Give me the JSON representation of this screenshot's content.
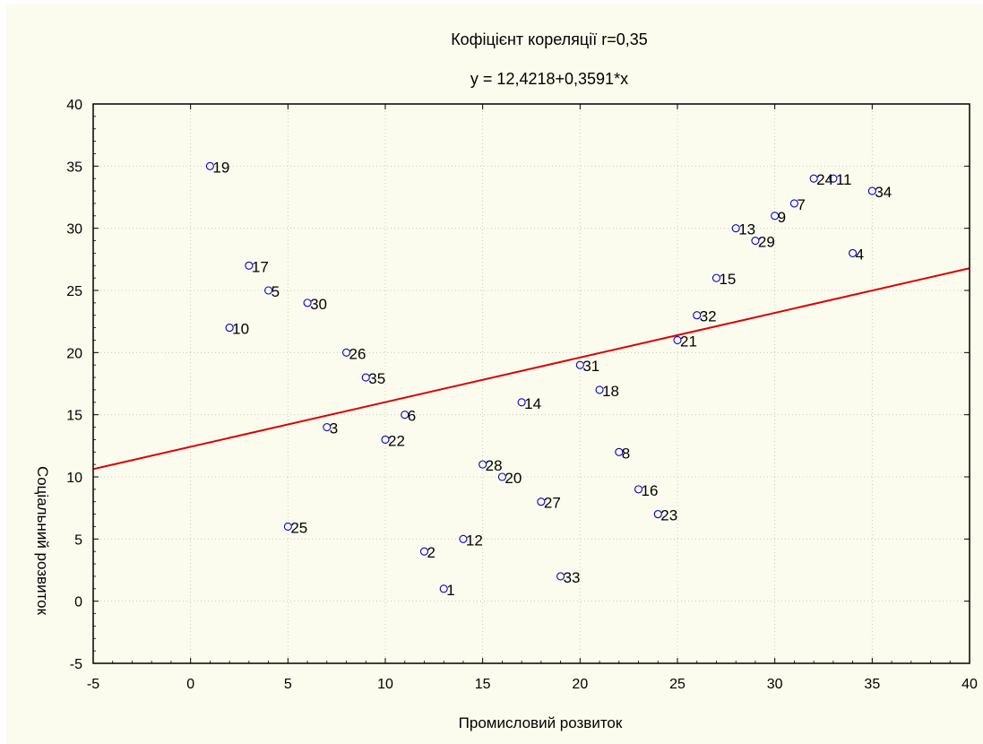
{
  "chart_data": {
    "type": "scatter",
    "title": "Кофіцієнт кореляції r=0,35",
    "subtitle": "y = 12,4218+0,3591*x",
    "xlabel": "Промисловий розвиток",
    "ylabel": "Соціальний розвиток",
    "xlim": [
      -5,
      40
    ],
    "ylim": [
      -5,
      40
    ],
    "xticks": [
      -5,
      0,
      5,
      10,
      15,
      20,
      25,
      30,
      35,
      40
    ],
    "yticks": [
      -5,
      0,
      5,
      10,
      15,
      20,
      25,
      30,
      35,
      40
    ],
    "grid": true,
    "regression": {
      "intercept": 12.4218,
      "slope": 0.3591
    },
    "points": [
      {
        "label": "1",
        "x": 13,
        "y": 1
      },
      {
        "label": "2",
        "x": 12,
        "y": 4
      },
      {
        "label": "3",
        "x": 7,
        "y": 14
      },
      {
        "label": "4",
        "x": 34,
        "y": 28
      },
      {
        "label": "5",
        "x": 4,
        "y": 25
      },
      {
        "label": "6",
        "x": 11,
        "y": 15
      },
      {
        "label": "7",
        "x": 31,
        "y": 32
      },
      {
        "label": "8",
        "x": 22,
        "y": 12
      },
      {
        "label": "9",
        "x": 30,
        "y": 31
      },
      {
        "label": "10",
        "x": 2,
        "y": 22
      },
      {
        "label": "11",
        "x": 33,
        "y": 34
      },
      {
        "label": "12",
        "x": 14,
        "y": 5
      },
      {
        "label": "13",
        "x": 28,
        "y": 30
      },
      {
        "label": "14",
        "x": 17,
        "y": 16
      },
      {
        "label": "15",
        "x": 27,
        "y": 26
      },
      {
        "label": "16",
        "x": 23,
        "y": 9
      },
      {
        "label": "17",
        "x": 3,
        "y": 27
      },
      {
        "label": "18",
        "x": 21,
        "y": 17
      },
      {
        "label": "19",
        "x": 1,
        "y": 35
      },
      {
        "label": "20",
        "x": 16,
        "y": 10
      },
      {
        "label": "21",
        "x": 25,
        "y": 21
      },
      {
        "label": "22",
        "x": 10,
        "y": 13
      },
      {
        "label": "23",
        "x": 24,
        "y": 7
      },
      {
        "label": "24",
        "x": 32,
        "y": 34
      },
      {
        "label": "25",
        "x": 5,
        "y": 6
      },
      {
        "label": "26",
        "x": 8,
        "y": 20
      },
      {
        "label": "27",
        "x": 18,
        "y": 8
      },
      {
        "label": "28",
        "x": 15,
        "y": 11
      },
      {
        "label": "29",
        "x": 29,
        "y": 29
      },
      {
        "label": "30",
        "x": 6,
        "y": 24
      },
      {
        "label": "31",
        "x": 20,
        "y": 19
      },
      {
        "label": "32",
        "x": 26,
        "y": 23
      },
      {
        "label": "33",
        "x": 19,
        "y": 2
      },
      {
        "label": "34",
        "x": 35,
        "y": 33
      },
      {
        "label": "35",
        "x": 9,
        "y": 18
      }
    ],
    "colors": {
      "background": "#FCFCEE",
      "point": "#0000CC",
      "line": "#DD0000",
      "grid": "#BBBBBB"
    }
  }
}
